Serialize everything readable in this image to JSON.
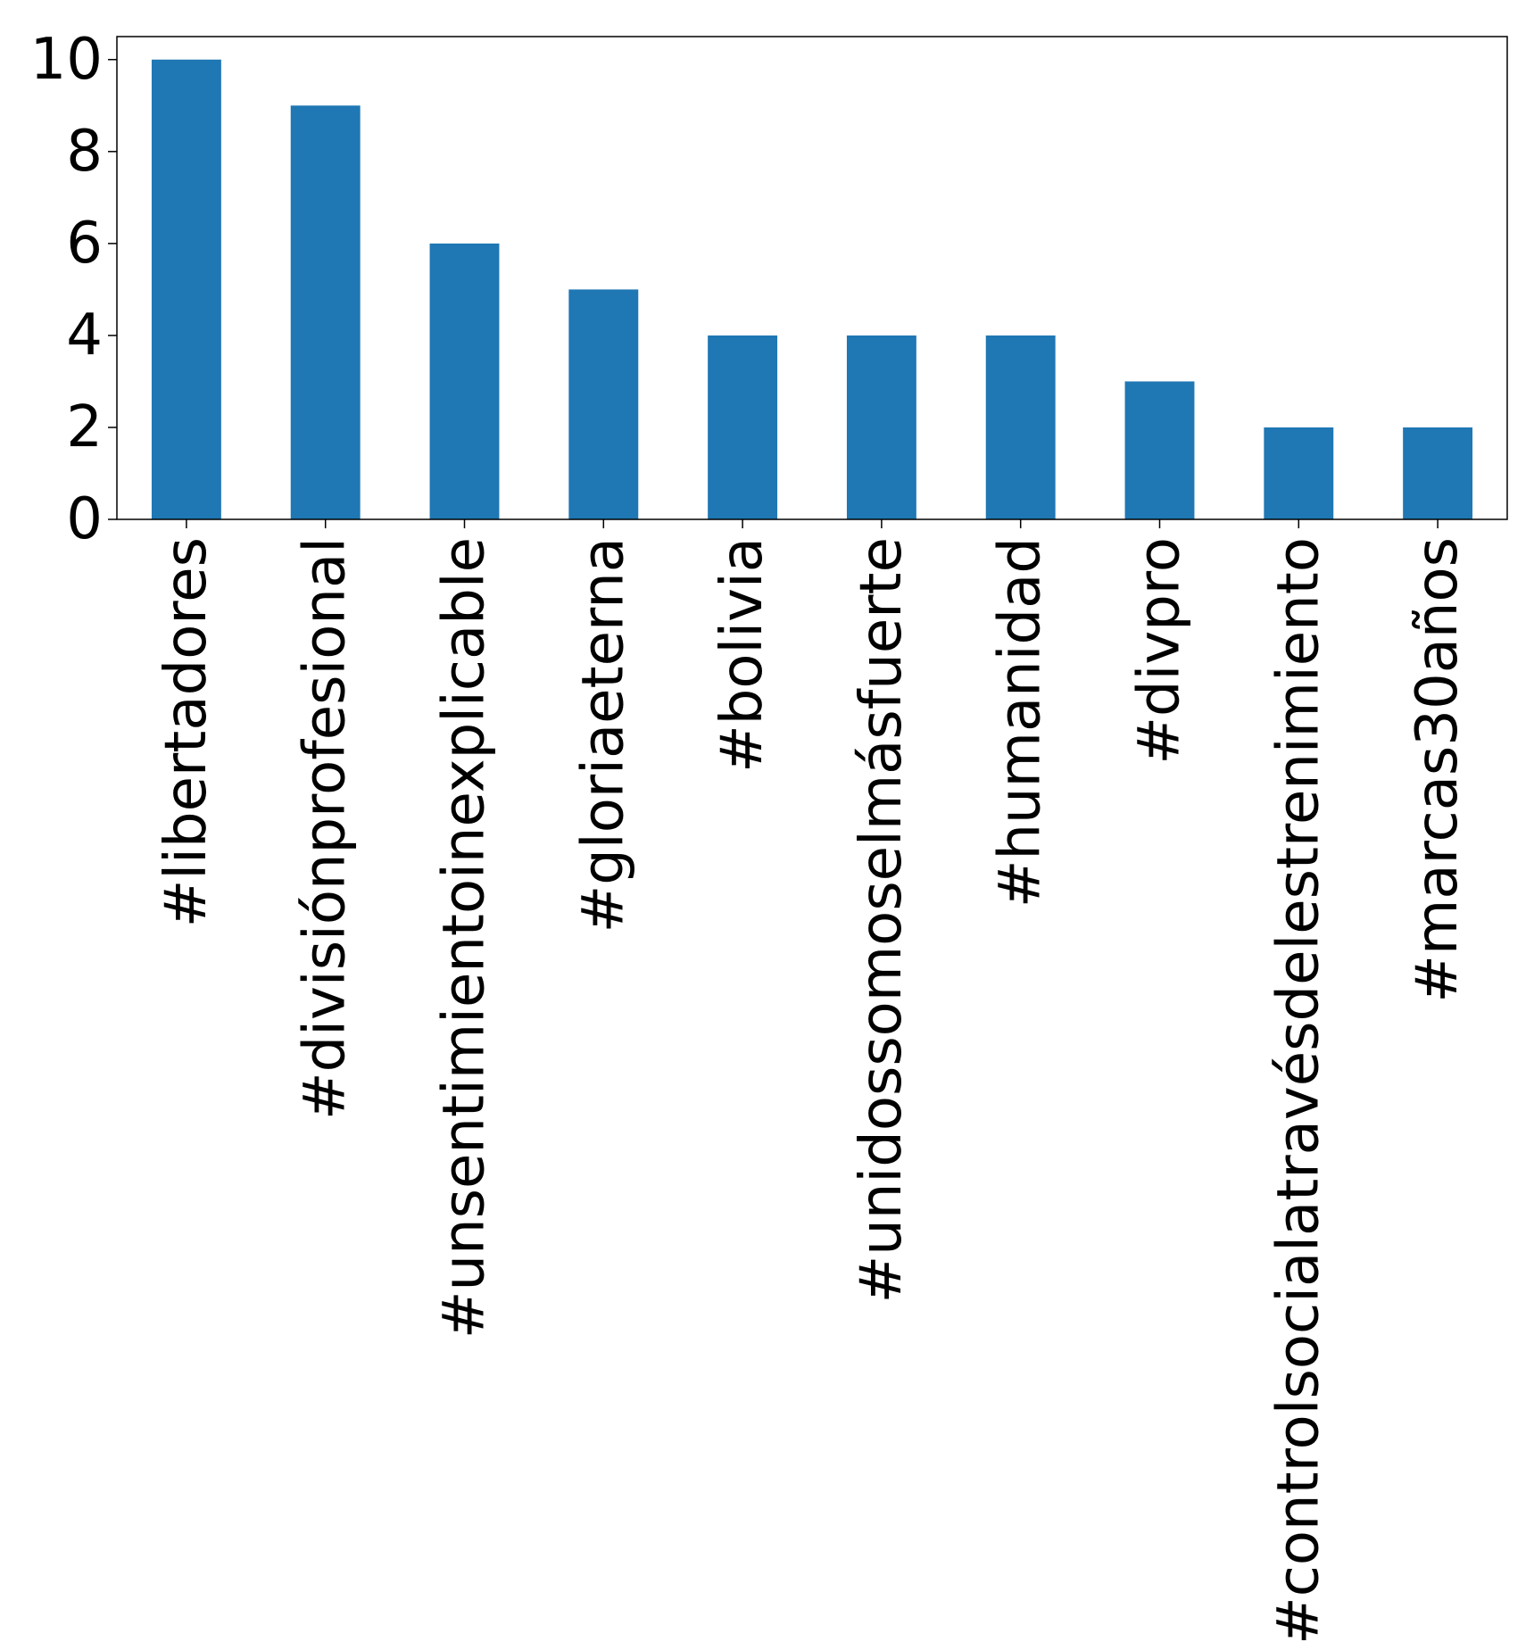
{
  "chart_data": {
    "type": "bar",
    "categories": [
      "#libertadores",
      "#divisiónprofesional",
      "#unsentimientoinexplicable",
      "#gloriaeterna",
      "#bolivia",
      "#unidossomoselmásfuerte",
      "#humanidad",
      "#divpro",
      "#controlsocialatravésdelestrenimiento",
      "#marcas30años"
    ],
    "values": [
      10,
      9,
      6,
      5,
      4,
      4,
      4,
      3,
      2,
      2
    ],
    "ylim": [
      0,
      10.5
    ],
    "yticks": [
      "0",
      "2",
      "4",
      "6",
      "8",
      "10"
    ],
    "bar_color": "#1f77b4",
    "grid": false
  }
}
